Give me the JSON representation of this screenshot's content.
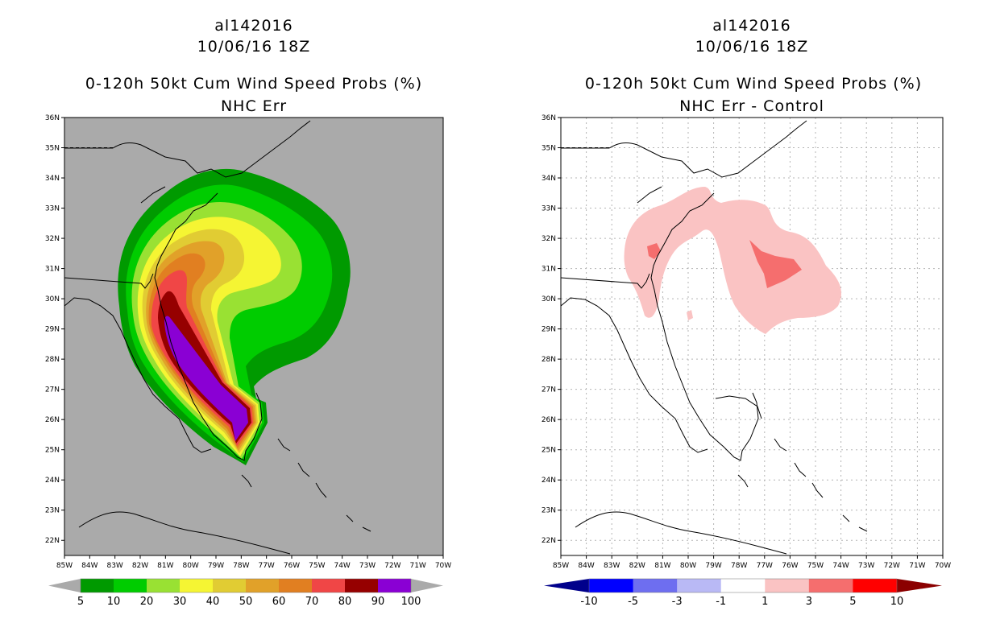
{
  "left_panel": {
    "storm_id": "al142016",
    "datetime": "10/06/16 18Z",
    "title": "0-120h 50kt Cum Wind Speed Probs (%)",
    "subtitle": "NHC Err",
    "lat_labels": [
      "36N",
      "35N",
      "34N",
      "33N",
      "32N",
      "31N",
      "30N",
      "29N",
      "28N",
      "27N",
      "26N",
      "25N",
      "24N",
      "23N",
      "22N"
    ],
    "lon_labels": [
      "85W",
      "84W",
      "83W",
      "82W",
      "81W",
      "80W",
      "79W",
      "78W",
      "77W",
      "76W",
      "75W",
      "74W",
      "73W",
      "72W",
      "71W",
      "70W"
    ],
    "colorbar": {
      "colors": [
        "#009a00",
        "#00cc00",
        "#99e133",
        "#f5f533",
        "#e1cc33",
        "#e1a129",
        "#e17f21",
        "#f04646",
        "#960000",
        "#8a00d4"
      ],
      "under_color": "#aaaaaa",
      "over_color": "#aaaaaa",
      "labels": [
        "5",
        "10",
        "20",
        "30",
        "40",
        "50",
        "60",
        "70",
        "80",
        "90",
        "100"
      ]
    }
  },
  "right_panel": {
    "storm_id": "al142016",
    "datetime": "10/06/16 18Z",
    "title": "0-120h 50kt Cum Wind Speed Probs (%)",
    "subtitle": "NHC Err - Control",
    "lat_labels": [
      "36N",
      "35N",
      "34N",
      "33N",
      "32N",
      "31N",
      "30N",
      "29N",
      "28N",
      "27N",
      "26N",
      "25N",
      "24N",
      "23N",
      "22N"
    ],
    "lon_labels": [
      "85W",
      "84W",
      "83W",
      "82W",
      "81W",
      "80W",
      "79W",
      "78W",
      "77W",
      "76W",
      "75W",
      "74W",
      "73W",
      "72W",
      "71W",
      "70W"
    ],
    "colorbar": {
      "colors": [
        "#0000ff",
        "#6e6ef0",
        "#b9b9f5",
        "#ffffff",
        "#fac3c3",
        "#f56e6e",
        "#ff0000"
      ],
      "under_color": "#00008b",
      "over_color": "#8b0000",
      "labels": [
        "-10",
        "-5",
        "-3",
        "-1",
        "1",
        "3",
        "5",
        "10"
      ]
    }
  }
}
